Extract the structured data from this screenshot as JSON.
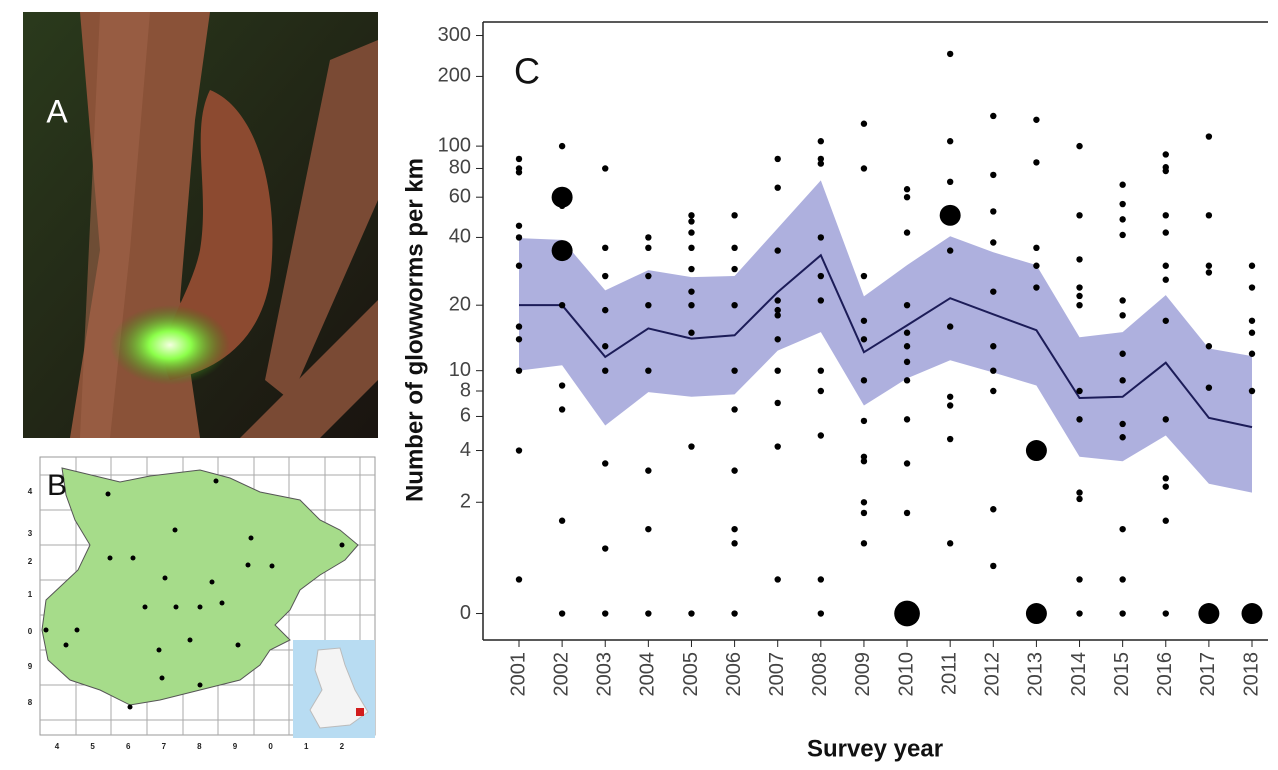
{
  "panels": {
    "photo_label": "A",
    "map_label": "B",
    "map_y_labels": [
      "4",
      "3",
      "2",
      "1",
      "0",
      "9",
      "8"
    ],
    "map_x_labels": [
      "4",
      "5",
      "6",
      "7",
      "8",
      "9",
      "0",
      "1",
      "2"
    ]
  },
  "chart_data": {
    "type": "line",
    "panel_label": "C",
    "y_label": "Number of glowworms per km",
    "x_label": "Survey year",
    "yscale": "log1p",
    "categories": [
      "2001",
      "2002",
      "2003",
      "2004",
      "2005",
      "2006",
      "2007",
      "2008",
      "2009",
      "2010",
      "2011",
      "2012",
      "2013",
      "2014",
      "2015",
      "2016",
      "2017",
      "2018"
    ],
    "mean": {
      "color": "#1c1c58",
      "values": [
        20,
        20,
        11.6,
        15.7,
        14.1,
        14.6,
        22.9,
        33.4,
        12.2,
        16.2,
        21.5,
        18.2,
        15.4,
        7.4,
        7.5,
        10.9,
        5.9,
        5.3
      ]
    },
    "band": {
      "color": "#aeb0de",
      "lower": [
        10,
        10.6,
        5.4,
        7.9,
        7.5,
        7.7,
        12.4,
        15.1,
        6.8,
        9.2,
        11.2,
        9.8,
        8.5,
        3.7,
        3.5,
        4.8,
        2.6,
        2.3
      ],
      "upper": [
        39.7,
        39,
        23.3,
        28.7,
        26.7,
        27,
        43.9,
        71,
        21.9,
        30.2,
        40.5,
        34.4,
        30.2,
        14.3,
        15.1,
        22.2,
        12.7,
        11.7
      ]
    },
    "point_color": "#000000",
    "points": [
      [
        88,
        80,
        77,
        45,
        40,
        30,
        16,
        14,
        10,
        4,
        0.4
      ],
      [
        100,
        55,
        20,
        8.5,
        6.5,
        1.5,
        0
      ],
      [
        80,
        36,
        27,
        19,
        13,
        10,
        3.4,
        0.9,
        0
      ],
      [
        40,
        36,
        27,
        20,
        10,
        3.1,
        1.3,
        0
      ],
      [
        50,
        47,
        42,
        36,
        29,
        23,
        20,
        15,
        4.2,
        0
      ],
      [
        50,
        36,
        29,
        20,
        10,
        6.5,
        3.1,
        1.3,
        1,
        0
      ],
      [
        88,
        66,
        35,
        21,
        19,
        18,
        14,
        10,
        7,
        4.2,
        0.4
      ],
      [
        105,
        88,
        84,
        40,
        27,
        21,
        10,
        8,
        4.8,
        0.4,
        0
      ],
      [
        125,
        80,
        27,
        17,
        14,
        9,
        5.7,
        3.7,
        3.5,
        2,
        1.7,
        1
      ],
      [
        65,
        60,
        42,
        20,
        15,
        13,
        11,
        9,
        5.8,
        3.4,
        1.7
      ],
      [
        250,
        105,
        70,
        35,
        16,
        7.5,
        6.8,
        4.6,
        1
      ],
      [
        135,
        75,
        52,
        38,
        23,
        13,
        10,
        8,
        1.8,
        0.6
      ],
      [
        130,
        85,
        36,
        30,
        24
      ],
      [
        100,
        50,
        32,
        24,
        22,
        20,
        8,
        5.8,
        2.3,
        2.1,
        0.4,
        0
      ],
      [
        68,
        56,
        48,
        41,
        21,
        18,
        12,
        9,
        5.5,
        4.7,
        1.3,
        0.4,
        0
      ],
      [
        92,
        81,
        78,
        50,
        42,
        30,
        26,
        17,
        5.8,
        2.8,
        2.5,
        1.5,
        0
      ],
      [
        110,
        50,
        30,
        28,
        13,
        8.3
      ],
      [
        30,
        24,
        17,
        15,
        12,
        8
      ]
    ],
    "large_points": {
      "x": [
        "2002",
        "2002",
        "2010",
        "2011",
        "2013",
        "2013",
        "2017",
        "2018"
      ],
      "values": [
        60,
        35,
        0,
        50,
        4,
        0,
        0,
        0
      ],
      "sizes": [
        2,
        2,
        3,
        2,
        2,
        2,
        2,
        2
      ]
    },
    "ylim": [
      -0.23,
      343
    ],
    "yticks": [
      0,
      2,
      4,
      6,
      8,
      10,
      20,
      40,
      60,
      80,
      100,
      200,
      300
    ]
  }
}
